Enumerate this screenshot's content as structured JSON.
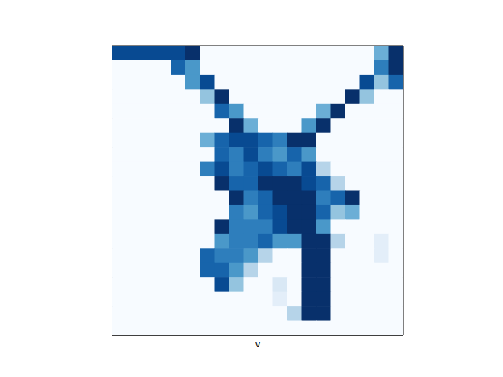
{
  "chart_data": {
    "type": "heatmap",
    "x_label": "v",
    "tick_labels": false,
    "xlim": [
      0,
      20
    ],
    "ylim": [
      0,
      20
    ],
    "cells": [
      [
        0.9,
        0.9,
        0.9,
        0.9,
        0.9,
        1,
        0,
        0,
        0,
        0,
        0,
        0,
        0,
        0,
        0,
        0,
        0,
        0,
        0.5,
        1
      ],
      [
        0,
        0,
        0,
        0,
        0.8,
        0.6,
        0,
        0,
        0,
        0,
        0,
        0,
        0,
        0,
        0,
        0,
        0,
        0,
        0.7,
        1
      ],
      [
        0,
        0,
        0,
        0,
        0,
        0.6,
        0.9,
        0,
        0,
        0,
        0,
        0,
        0,
        0,
        0,
        0,
        0,
        0.9,
        0.4,
        0.8
      ],
      [
        0,
        0,
        0,
        0,
        0,
        0,
        0.4,
        1,
        0,
        0,
        0,
        0,
        0,
        0,
        0,
        0,
        1,
        0.4,
        0,
        0
      ],
      [
        0,
        0,
        0,
        0,
        0,
        0,
        0,
        0.8,
        0.6,
        0,
        0,
        0,
        0,
        0,
        0.5,
        1,
        0,
        0,
        0,
        0
      ],
      [
        0,
        0,
        0,
        0,
        0,
        0,
        0,
        0,
        1,
        0.5,
        0,
        0,
        0,
        0.6,
        1,
        0,
        0,
        0,
        0,
        0
      ],
      [
        0,
        0,
        0,
        0,
        0,
        0,
        0.5,
        0.8,
        0.9,
        0.9,
        0.8,
        0.7,
        1,
        1,
        0,
        0,
        0,
        0,
        0,
        0
      ],
      [
        0,
        0,
        0,
        0,
        0,
        0,
        0,
        0.8,
        0.7,
        0.9,
        0.7,
        0.6,
        0.8,
        0.6,
        0,
        0,
        0,
        0,
        0,
        0
      ],
      [
        0,
        0,
        0,
        0,
        0,
        0,
        0.7,
        0.9,
        0.7,
        0.8,
        0.9,
        0.8,
        0.7,
        0.9,
        0.3,
        0,
        0,
        0,
        0,
        0
      ],
      [
        0,
        0,
        0,
        0,
        0,
        0,
        0,
        1,
        0.8,
        0.8,
        1,
        1,
        1,
        0.9,
        0.8,
        0.3,
        0,
        0,
        0,
        0
      ],
      [
        0,
        0,
        0,
        0,
        0,
        0,
        0,
        0,
        1,
        0.7,
        0.8,
        1,
        1,
        1,
        0.7,
        0.8,
        1,
        0,
        0,
        0
      ],
      [
        0,
        0,
        0,
        0,
        0,
        0,
        0,
        0,
        0.7,
        0.6,
        0.8,
        0.9,
        1,
        1,
        0.8,
        0.4,
        0.5,
        0,
        0,
        0
      ],
      [
        0,
        0,
        0,
        0,
        0,
        0,
        0,
        1,
        0.7,
        0.7,
        0.7,
        0.9,
        1,
        1,
        0.6,
        0,
        0,
        0,
        0,
        0
      ],
      [
        0,
        0,
        0,
        0,
        0,
        0,
        0,
        0.6,
        0.7,
        0.7,
        0.8,
        0.6,
        0.6,
        1,
        1,
        0.3,
        0,
        0,
        0.1,
        0
      ],
      [
        0,
        0,
        0,
        0,
        0,
        0,
        0.8,
        0.7,
        0.7,
        0.6,
        0.3,
        0,
        0,
        1,
        1,
        0,
        0,
        0,
        0.1,
        0
      ],
      [
        0,
        0,
        0,
        0,
        0,
        0,
        0.8,
        0.8,
        0.6,
        0.3,
        0,
        0,
        0,
        1,
        1,
        0,
        0,
        0,
        0,
        0
      ],
      [
        0,
        0,
        0,
        0,
        0,
        0,
        0,
        0.9,
        0.4,
        0,
        0,
        0.15,
        0,
        1,
        1,
        0,
        0,
        0,
        0,
        0
      ],
      [
        0,
        0,
        0,
        0,
        0,
        0,
        0,
        0,
        0,
        0,
        0,
        0.1,
        0,
        1,
        1,
        0,
        0,
        0,
        0,
        0
      ],
      [
        0,
        0,
        0,
        0,
        0,
        0,
        0,
        0,
        0,
        0,
        0,
        0,
        0.3,
        1,
        1,
        0,
        0,
        0,
        0,
        0
      ],
      [
        0,
        0,
        0,
        0,
        0,
        0,
        0,
        0,
        0,
        0,
        0,
        0,
        0,
        0,
        0,
        0,
        0,
        0,
        0,
        0
      ]
    ]
  }
}
